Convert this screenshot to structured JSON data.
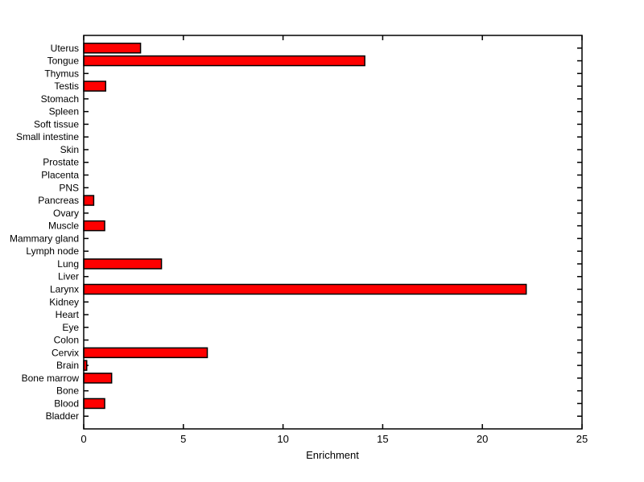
{
  "figure": {
    "background": "#ffffff",
    "text_color": "#000000"
  },
  "chart_data": {
    "type": "bar",
    "orientation": "horizontal",
    "title": "",
    "xlabel": "Enrichment",
    "ylabel": "",
    "categories": [
      "Uterus",
      "Tongue",
      "Thymus",
      "Testis",
      "Stomach",
      "Spleen",
      "Soft tissue",
      "Small intestine",
      "Skin",
      "Prostate",
      "Placenta",
      "PNS",
      "Pancreas",
      "Ovary",
      "Muscle",
      "Mammary gland",
      "Lymph node",
      "Lung",
      "Liver",
      "Larynx",
      "Kidney",
      "Heart",
      "Eye",
      "Colon",
      "Cervix",
      "Brain",
      "Bone marrow",
      "Bone",
      "Blood",
      "Bladder"
    ],
    "values": [
      2.85,
      14.1,
      0,
      1.1,
      0,
      0,
      0,
      0,
      0,
      0,
      0,
      0,
      0.5,
      0,
      1.05,
      0,
      0,
      3.9,
      0,
      22.2,
      0,
      0,
      0,
      0,
      6.2,
      0.15,
      1.4,
      0,
      1.05,
      0
    ],
    "xlim": [
      0,
      25
    ],
    "xticks": [
      0,
      5,
      10,
      15,
      20,
      25
    ],
    "grid": false,
    "bar_color": "#ff0000",
    "bar_edge_color": "#000000",
    "axis_color": "#000000"
  }
}
